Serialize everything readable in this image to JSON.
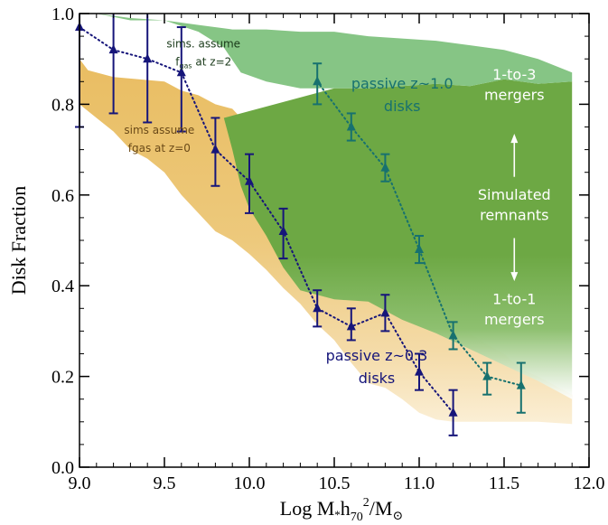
{
  "chart_data": {
    "type": "scatter",
    "xlabel_parts": {
      "pre": "Log M",
      "star": "*",
      "h": "h",
      "sub70": "70",
      "sup2": "2",
      "post": "/M",
      "sun": "⊙"
    },
    "ylabel": "Disk Fraction",
    "xlim": [
      9.0,
      12.0
    ],
    "ylim": [
      0.0,
      1.0
    ],
    "x_ticks": [
      9.0,
      9.5,
      10.0,
      10.5,
      11.0,
      11.5,
      12.0
    ],
    "x_tick_labels": [
      "9.0",
      "9.5",
      "10.0",
      "10.5",
      "11.0",
      "11.5",
      "12.0"
    ],
    "y_ticks": [
      0.0,
      0.2,
      0.4,
      0.6,
      0.8,
      1.0
    ],
    "y_tick_labels": [
      "0.0",
      "0.2",
      "0.4",
      "0.6",
      "0.8",
      "1.0"
    ],
    "x_minor_step": 0.1,
    "y_minor_step": 0.05,
    "regions": [
      {
        "label_lines": [
          "sims. assume",
          "f",
          "gas",
          " at z=2"
        ],
        "color": "#7bbd7e",
        "upper": [
          [
            9.0,
            1.0
          ],
          [
            9.1,
            1.0
          ],
          [
            9.3,
            0.985
          ],
          [
            9.5,
            0.985
          ],
          [
            9.7,
            0.975
          ],
          [
            9.9,
            0.965
          ],
          [
            10.1,
            0.965
          ],
          [
            10.3,
            0.96
          ],
          [
            10.5,
            0.96
          ],
          [
            10.7,
            0.95
          ],
          [
            10.9,
            0.945
          ],
          [
            11.1,
            0.94
          ],
          [
            11.3,
            0.93
          ],
          [
            11.5,
            0.92
          ],
          [
            11.7,
            0.9
          ],
          [
            11.9,
            0.87
          ]
        ],
        "lower": [
          [
            11.9,
            0.85
          ],
          [
            11.7,
            0.845
          ],
          [
            11.5,
            0.855
          ],
          [
            11.3,
            0.84
          ],
          [
            11.1,
            0.845
          ],
          [
            10.9,
            0.84
          ],
          [
            10.7,
            0.835
          ],
          [
            10.5,
            0.835
          ],
          [
            10.3,
            0.835
          ],
          [
            10.1,
            0.85
          ],
          [
            9.95,
            0.87
          ],
          [
            9.85,
            0.925
          ],
          [
            9.7,
            0.96
          ],
          [
            9.5,
            0.985
          ],
          [
            9.3,
            0.99
          ],
          [
            9.1,
            1.0
          ]
        ]
      },
      {
        "label_lines": [
          "1-to-3",
          "mergers",
          "Simulated",
          "remnants",
          "1-to-1",
          "mergers"
        ],
        "color": "#6da844",
        "upper": [
          [
            10.5,
            0.835
          ],
          [
            10.7,
            0.835
          ],
          [
            10.9,
            0.84
          ],
          [
            11.1,
            0.845
          ],
          [
            11.3,
            0.84
          ],
          [
            11.5,
            0.855
          ],
          [
            11.7,
            0.845
          ],
          [
            11.9,
            0.85
          ]
        ],
        "lower": [
          [
            11.9,
            0.15
          ],
          [
            11.7,
            0.19
          ],
          [
            11.5,
            0.225
          ],
          [
            11.3,
            0.26
          ],
          [
            11.1,
            0.295
          ],
          [
            10.9,
            0.325
          ],
          [
            10.7,
            0.365
          ],
          [
            10.5,
            0.37
          ],
          [
            10.3,
            0.39
          ],
          [
            10.2,
            0.44
          ],
          [
            10.1,
            0.51
          ],
          [
            10.0,
            0.57
          ],
          [
            9.95,
            0.62
          ],
          [
            9.9,
            0.7
          ],
          [
            9.85,
            0.77
          ]
        ]
      },
      {
        "label_lines": [
          "sims assume",
          "fgas at z=0"
        ],
        "color": "#e9bd62",
        "upper": [
          [
            9.0,
            0.9
          ],
          [
            9.05,
            0.875
          ],
          [
            9.1,
            0.87
          ],
          [
            9.2,
            0.86
          ],
          [
            9.35,
            0.855
          ],
          [
            9.5,
            0.85
          ],
          [
            9.6,
            0.83
          ],
          [
            9.7,
            0.82
          ],
          [
            9.8,
            0.8
          ],
          [
            9.9,
            0.79
          ],
          [
            10.0,
            0.75
          ],
          [
            10.1,
            0.72
          ],
          [
            10.2,
            0.67
          ],
          [
            10.3,
            0.6
          ],
          [
            10.4,
            0.545
          ],
          [
            10.5,
            0.48
          ],
          [
            10.6,
            0.44
          ],
          [
            10.7,
            0.41
          ],
          [
            10.8,
            0.39
          ],
          [
            10.9,
            0.375
          ],
          [
            11.0,
            0.365
          ],
          [
            11.1,
            0.35
          ],
          [
            11.2,
            0.315
          ],
          [
            11.3,
            0.295
          ],
          [
            11.4,
            0.27
          ],
          [
            11.5,
            0.25
          ],
          [
            11.6,
            0.215
          ],
          [
            11.7,
            0.2
          ],
          [
            11.8,
            0.18
          ],
          [
            11.9,
            0.16
          ]
        ],
        "lower": [
          [
            11.9,
            0.095
          ],
          [
            11.7,
            0.1
          ],
          [
            11.6,
            0.1
          ],
          [
            11.5,
            0.1
          ],
          [
            11.4,
            0.1
          ],
          [
            11.3,
            0.1
          ],
          [
            11.2,
            0.1
          ],
          [
            11.1,
            0.105
          ],
          [
            11.0,
            0.12
          ],
          [
            10.9,
            0.15
          ],
          [
            10.8,
            0.175
          ],
          [
            10.7,
            0.185
          ],
          [
            10.6,
            0.23
          ],
          [
            10.5,
            0.28
          ],
          [
            10.4,
            0.315
          ],
          [
            10.3,
            0.36
          ],
          [
            10.2,
            0.395
          ],
          [
            10.1,
            0.435
          ],
          [
            10.0,
            0.47
          ],
          [
            9.9,
            0.5
          ],
          [
            9.8,
            0.52
          ],
          [
            9.7,
            0.56
          ],
          [
            9.6,
            0.6
          ],
          [
            9.5,
            0.65
          ],
          [
            9.4,
            0.68
          ],
          [
            9.3,
            0.7
          ],
          [
            9.2,
            0.74
          ],
          [
            9.1,
            0.77
          ],
          [
            9.0,
            0.8
          ]
        ]
      }
    ],
    "series": [
      {
        "name": [
          "passive z~0.3",
          "disks"
        ],
        "color": "#16157a",
        "x": [
          9.0,
          9.2,
          9.4,
          9.6,
          9.8,
          10.0,
          10.2,
          10.4,
          10.6,
          10.8,
          11.0,
          11.2
        ],
        "y": [
          0.97,
          0.92,
          0.9,
          0.87,
          0.7,
          0.63,
          0.52,
          0.35,
          0.31,
          0.34,
          0.21,
          0.12
        ],
        "err_lo": [
          0.22,
          0.14,
          0.14,
          0.13,
          0.08,
          0.07,
          0.06,
          0.04,
          0.03,
          0.04,
          0.04,
          0.05
        ],
        "err_hi": [
          0.1,
          0.13,
          0.17,
          0.1,
          0.07,
          0.06,
          0.05,
          0.04,
          0.04,
          0.04,
          0.04,
          0.05
        ]
      },
      {
        "name": [
          "passive z~1.0",
          "disks"
        ],
        "color": "#17716f",
        "x": [
          10.4,
          10.6,
          10.8,
          11.0,
          11.2,
          11.4,
          11.6
        ],
        "y": [
          0.85,
          0.75,
          0.66,
          0.48,
          0.29,
          0.2,
          0.18
        ],
        "err_lo": [
          0.05,
          0.03,
          0.03,
          0.03,
          0.03,
          0.04,
          0.06
        ],
        "err_hi": [
          0.04,
          0.03,
          0.03,
          0.03,
          0.03,
          0.03,
          0.05
        ]
      }
    ]
  }
}
